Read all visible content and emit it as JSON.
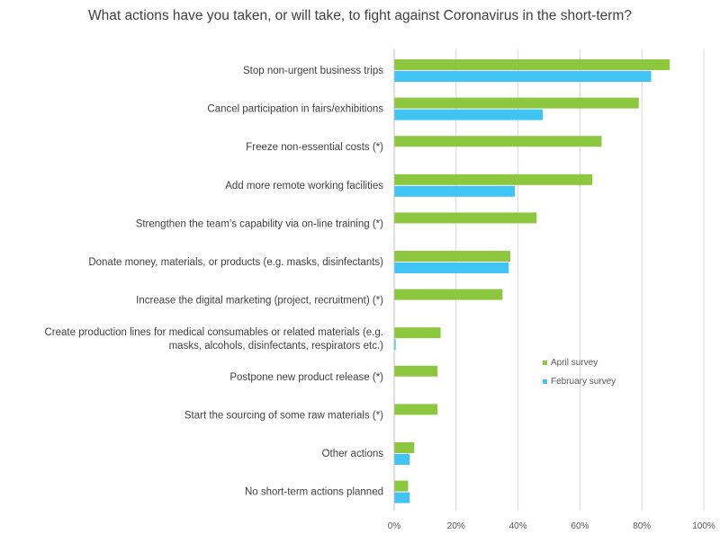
{
  "chart_data": {
    "type": "bar",
    "orientation": "horizontal",
    "title": "What actions have you taken, or will take, to fight against Coronavirus in the short-term?",
    "categories": [
      [
        "Stop non-urgent business trips"
      ],
      [
        "Cancel participation in fairs/exhibitions"
      ],
      [
        "Freeze non-essential costs (*)"
      ],
      [
        "Add more remote working facilities"
      ],
      [
        "Strengthen the team’s capability via on-line training (*)"
      ],
      [
        "Donate money, materials, or products (e.g. masks, disinfectants)"
      ],
      [
        "Increase the digital marketing (project, recruitment) (*)"
      ],
      [
        "Create production lines for medical consumables or related materials (e.g.",
        "masks, alcohols, disinfectants, respirators etc.)"
      ],
      [
        "Postpone new product release (*)"
      ],
      [
        "Start the sourcing of some raw materials (*)"
      ],
      [
        "Other actions"
      ],
      [
        "No short-term actions planned"
      ]
    ],
    "series": [
      {
        "name": "April survey",
        "color": "#8dc63f",
        "values": [
          89,
          79,
          67,
          64,
          46,
          37.5,
          35,
          15,
          14,
          14,
          6.5,
          4.5
        ]
      },
      {
        "name": "February survey",
        "color": "#40c4f4",
        "values": [
          83,
          48,
          null,
          39,
          null,
          37,
          null,
          0.5,
          null,
          null,
          5,
          5
        ]
      }
    ],
    "xlim": [
      0,
      100
    ],
    "xticks": [
      "0%",
      "20%",
      "40%",
      "60%",
      "80%",
      "100%"
    ],
    "grid": true,
    "legend": "right"
  }
}
